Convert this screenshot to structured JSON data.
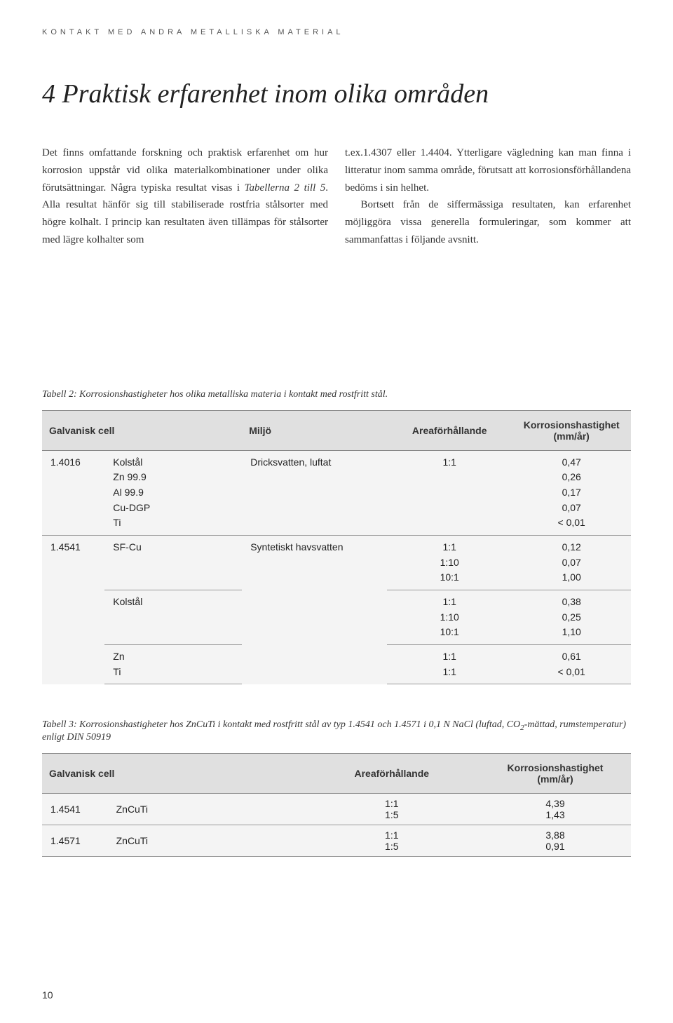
{
  "header": {
    "running_title": "KONTAKT MED ANDRA METALLISKA MATERIAL"
  },
  "title": "4 Praktisk erfarenhet inom olika områden",
  "body": {
    "col1_a": "Det finns omfattande forskning och praktisk erfarenhet om hur korrosion uppstår vid olika materialkombinationer under olika förutsättningar. Några typiska resultat visas i ",
    "col1_i": "Tabellerna 2 till 5",
    "col1_b": ". Alla resultat hänför sig till stabiliserade rostfria stålsorter med högre kolhalt. I princip kan resultaten även tillämpas för stålsorter med lägre kolhalter som",
    "col2_a": "t.ex.1.4307 eller 1.4404. Ytterligare vägledning kan man finna i litteratur inom samma område, förutsatt att korrosionsförhållandena bedöms i sin helhet.",
    "col2_b": "Bortsett från de siffermässiga resultaten, kan erfarenhet möjliggöra vissa generella formuleringar, som kommer att sammanfattas i följande avsnitt."
  },
  "table2": {
    "caption": "Tabell 2: Korrosionshastigheter hos olika metalliska materia i kontakt med rostfritt stål.",
    "headers": {
      "cell": "Galvanisk cell",
      "env": "Miljö",
      "ratio": "Areaförhållande",
      "rate": "Korrosionshastighet\n(mm/år)"
    },
    "r1": {
      "id": "1.4016",
      "mats": "Kolstål\nZn 99.9\nAl 99.9\nCu-DGP\nTi",
      "env": "Dricksvatten, luftat",
      "ratio": "1:1",
      "rates": "0,47\n0,26\n0,17\n0,07\n< 0,01"
    },
    "r2": {
      "id": "1.4541"
    },
    "r2a": {
      "mat": "SF-Cu",
      "env": "Syntetiskt havsvatten",
      "ratios": "1:1\n1:10\n10:1",
      "rates": "0,12\n0,07\n1,00"
    },
    "r2b": {
      "mat": "Kolstål",
      "ratios": "1:1\n1:10\n10:1",
      "rates": "0,38\n0,25\n1,10"
    },
    "r2c": {
      "mat": "Zn\nTi",
      "ratios": "1:1\n1:1",
      "rates": "0,61\n< 0,01"
    }
  },
  "table3": {
    "caption_a": "Tabell 3: Korrosionshastigheter hos ZnCuTi i kontakt med rostfritt stål av typ 1.4541 och 1.4571 i 0,1 N NaCl (luftad, CO",
    "caption_sub": "2",
    "caption_b": "-mättad, rumstemperatur) enligt DIN 50919",
    "headers": {
      "cell": "Galvanisk cell",
      "ratio": "Areaförhållande",
      "rate": "Korrosionshastighet\n(mm/år)"
    },
    "r1": {
      "id": "1.4541",
      "mat": "ZnCuTi",
      "ratios": "1:1\n1:5",
      "rates": "4,39\n1,43"
    },
    "r2": {
      "id": "1.4571",
      "mat": "ZnCuTi",
      "ratios": "1:1\n1:5",
      "rates": "3,88\n0,91"
    }
  },
  "page_number": "10",
  "style": {
    "background": "#ffffff",
    "header_bg": "#e0e0e0",
    "cell_bg": "#f4f4f4",
    "border_color": "#888888",
    "title_fontsize": 38,
    "body_fontsize": 15,
    "table_fontsize": 14,
    "caption_fontsize": 14
  }
}
